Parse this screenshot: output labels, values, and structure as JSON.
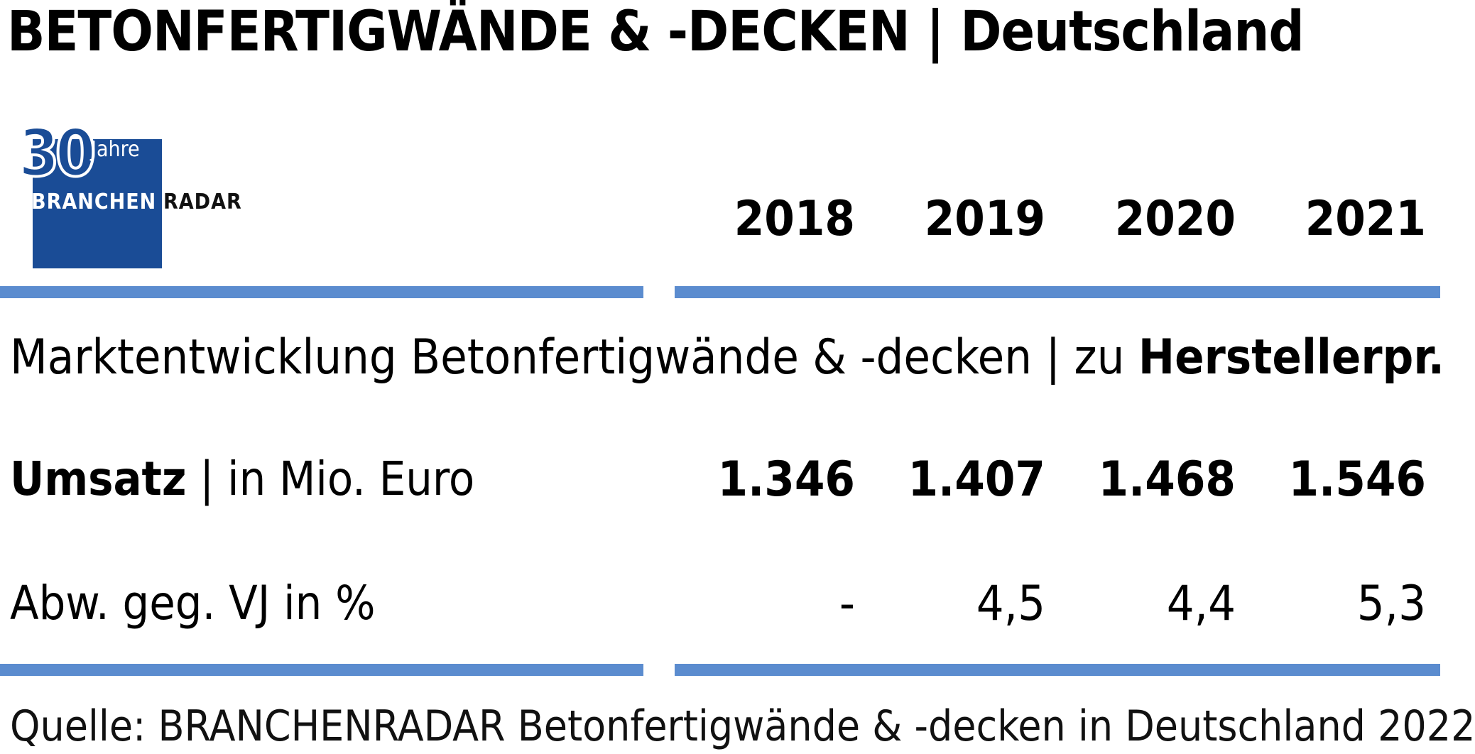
{
  "header": {
    "title": "BETONFERTIGWÄNDE & -DECKEN | Deutschland"
  },
  "logo": {
    "number": "30",
    "jahre": "Jahre",
    "brand_left": "BRANCHEN",
    "brand_right": "RADAR"
  },
  "table": {
    "years": [
      "2018",
      "2019",
      "2020",
      "2021"
    ],
    "subtitle_regular": "Marktentwicklung Betonfertigwände & -decken | zu ",
    "subtitle_bold": "Herstellerpr.",
    "rows": [
      {
        "label_bold": "Umsatz",
        "label_regular": " | in Mio. Euro",
        "values": [
          "1.346",
          "1.407",
          "1.468",
          "1.546"
        ]
      },
      {
        "label_regular": "Abw. geg. VJ in %",
        "values": [
          "-",
          "4,5",
          "4,4",
          "5,3"
        ]
      }
    ],
    "rule_color": "#5b8ccf"
  },
  "footer": {
    "source": "Quelle: BRANCHENRADAR Betonfertigwände & -decken in Deutschland 2022"
  }
}
